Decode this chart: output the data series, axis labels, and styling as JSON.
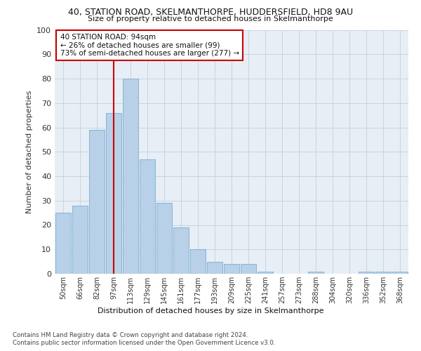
{
  "title1": "40, STATION ROAD, SKELMANTHORPE, HUDDERSFIELD, HD8 9AU",
  "title2": "Size of property relative to detached houses in Skelmanthorpe",
  "xlabel": "Distribution of detached houses by size in Skelmanthorpe",
  "ylabel": "Number of detached properties",
  "categories": [
    "50sqm",
    "66sqm",
    "82sqm",
    "97sqm",
    "113sqm",
    "129sqm",
    "145sqm",
    "161sqm",
    "177sqm",
    "193sqm",
    "209sqm",
    "225sqm",
    "241sqm",
    "257sqm",
    "273sqm",
    "288sqm",
    "304sqm",
    "320sqm",
    "336sqm",
    "352sqm",
    "368sqm"
  ],
  "values": [
    25,
    28,
    59,
    66,
    80,
    47,
    29,
    19,
    10,
    5,
    4,
    4,
    1,
    0,
    0,
    1,
    0,
    0,
    1,
    1,
    1
  ],
  "bar_color": "#b8d0e8",
  "bar_edge_color": "#7aaed0",
  "vline_x": 3.0,
  "vline_color": "#cc0000",
  "annotation_text": "40 STATION ROAD: 94sqm\n← 26% of detached houses are smaller (99)\n73% of semi-detached houses are larger (277) →",
  "annotation_box_color": "#ffffff",
  "annotation_box_edge": "#cc0000",
  "ylim": [
    0,
    100
  ],
  "yticks": [
    0,
    10,
    20,
    30,
    40,
    50,
    60,
    70,
    80,
    90,
    100
  ],
  "plot_bg_color": "#e8eef5",
  "footer1": "Contains HM Land Registry data © Crown copyright and database right 2024.",
  "footer2": "Contains public sector information licensed under the Open Government Licence v3.0."
}
